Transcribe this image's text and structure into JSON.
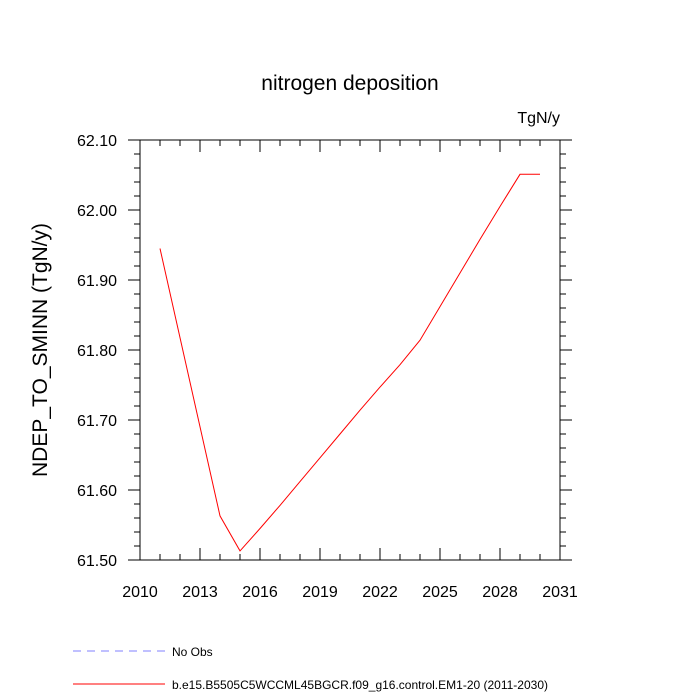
{
  "chart_data": {
    "type": "line",
    "title": "nitrogen deposition",
    "units_label": "TgN/y",
    "ylabel": "NDEP_TO_SMINN  (TgN/y)",
    "xlabel": "",
    "xlim": [
      2010,
      2031
    ],
    "ylim": [
      61.5,
      62.1
    ],
    "x_ticks": [
      2010,
      2013,
      2016,
      2019,
      2022,
      2025,
      2028,
      2031
    ],
    "y_ticks": [
      "61.50",
      "61.60",
      "61.70",
      "61.80",
      "61.90",
      "62.00",
      "62.10"
    ],
    "grid": false,
    "legend_position": "bottom-left, below plot",
    "series": [
      {
        "name": "b.e15.B5505C5WCCML45BGCR.f09_g16.control.EM1-20 (2011-2030)",
        "color": "#ff0000",
        "style": "solid",
        "x": [
          2011,
          2014,
          2015,
          2016,
          2017,
          2018,
          2019,
          2020,
          2021,
          2022,
          2023,
          2024,
          2025,
          2026,
          2027,
          2028,
          2029,
          2030
        ],
        "y": [
          61.945,
          61.563,
          61.513,
          61.545,
          61.578,
          61.612,
          61.646,
          61.68,
          61.714,
          61.747,
          61.779,
          61.814,
          61.862,
          61.91,
          61.958,
          62.005,
          62.051,
          62.051
        ]
      },
      {
        "name": "No Obs",
        "color": "#8080ff",
        "style": "dashed",
        "x": [],
        "y": []
      }
    ]
  }
}
